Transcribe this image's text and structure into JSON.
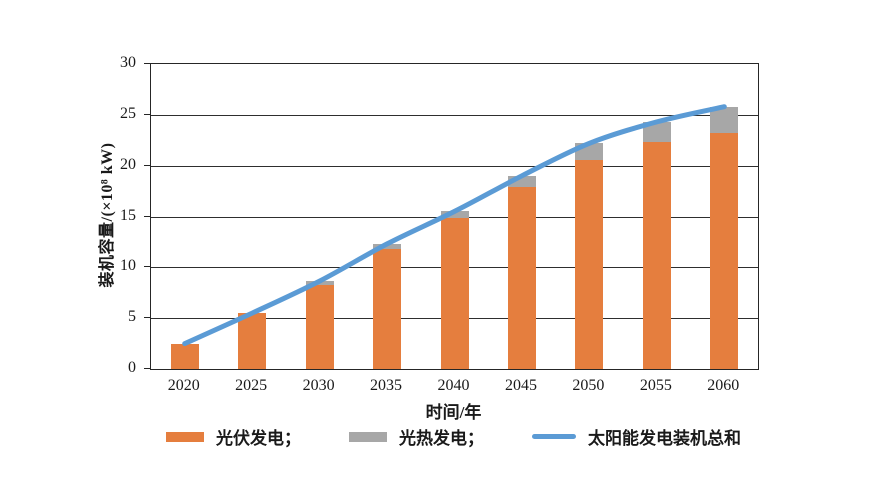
{
  "chart_data": {
    "type": "bar",
    "subtype": "stacked-bar-with-line",
    "title": "",
    "categories": [
      "2020",
      "2025",
      "2030",
      "2035",
      "2040",
      "2045",
      "2050",
      "2055",
      "2060"
    ],
    "series": [
      {
        "name": "光伏发电",
        "type": "bar",
        "color": "#E57E3E",
        "values": [
          2.5,
          5.5,
          8.3,
          11.8,
          14.9,
          17.9,
          20.6,
          22.3,
          23.2
        ]
      },
      {
        "name": "光热发电",
        "type": "bar",
        "color": "#A7A7A7",
        "values": [
          0,
          0,
          0.35,
          0.5,
          0.6,
          1.1,
          1.6,
          2.0,
          2.6
        ]
      },
      {
        "name": "太阳能发电装机总和",
        "type": "line",
        "color": "#5B9BD5",
        "values": [
          2.5,
          5.5,
          8.65,
          12.3,
          15.5,
          19.0,
          22.2,
          24.3,
          25.8
        ]
      }
    ],
    "xlabel": "时间/年",
    "ylabel": "装机容量/(×10⁸ kW)",
    "ylim": [
      0,
      30
    ],
    "ytick_step": 5,
    "yticks": [
      0,
      5,
      10,
      15,
      20,
      25,
      30
    ],
    "grid": true,
    "grid_color": "#2e2e2e",
    "legend_position": "bottom"
  },
  "axes": {
    "x_title": "时间/年",
    "y_title": "装机容量/(×10⁸ kW)"
  },
  "legend": {
    "items": [
      {
        "label": "光伏发电；",
        "swatch": "rect",
        "color": "#E57E3E"
      },
      {
        "label": "光热发电；",
        "swatch": "rect",
        "color": "#A7A7A7"
      },
      {
        "label": "太阳能发电装机总和",
        "swatch": "line",
        "color": "#5B9BD5"
      }
    ]
  }
}
